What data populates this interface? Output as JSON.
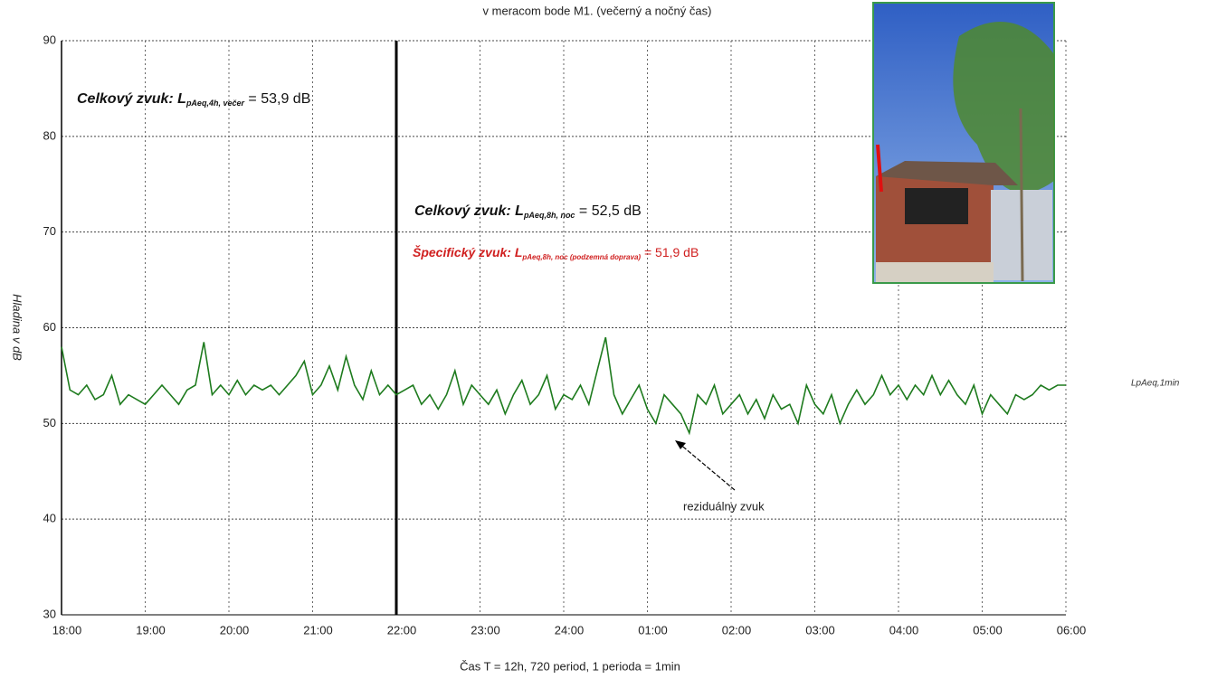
{
  "chart_data": {
    "type": "line",
    "title": "v meracom bode  M1.  (večerný a nočný čas)",
    "ylabel": "Hladina v dB",
    "xlabel": "Čas T = 12h, 720 period, 1 perioda = 1min",
    "xlim": [
      0,
      720
    ],
    "ylim": [
      30,
      90
    ],
    "yticks": [
      30,
      40,
      50,
      60,
      70,
      80,
      90
    ],
    "xticks": [
      {
        "value": 0,
        "label": "18:00"
      },
      {
        "value": 60,
        "label": "19:00"
      },
      {
        "value": 120,
        "label": "20:00"
      },
      {
        "value": 180,
        "label": "21:00"
      },
      {
        "value": 240,
        "label": "22:00"
      },
      {
        "value": 300,
        "label": "23:00"
      },
      {
        "value": 360,
        "label": "24:00"
      },
      {
        "value": 420,
        "label": "01:00"
      },
      {
        "value": 480,
        "label": "02:00"
      },
      {
        "value": 540,
        "label": "03:00"
      },
      {
        "value": 600,
        "label": "04:00"
      },
      {
        "value": 660,
        "label": "05:00"
      },
      {
        "value": 720,
        "label": "06:00"
      }
    ],
    "grid": true,
    "x": [
      0,
      6,
      12,
      18,
      24,
      30,
      36,
      42,
      48,
      54,
      60,
      66,
      72,
      78,
      84,
      90,
      96,
      102,
      108,
      114,
      120,
      126,
      132,
      138,
      144,
      150,
      156,
      162,
      168,
      174,
      180,
      186,
      192,
      198,
      204,
      210,
      216,
      222,
      228,
      234,
      240,
      246,
      252,
      258,
      264,
      270,
      276,
      282,
      288,
      294,
      300,
      306,
      312,
      318,
      324,
      330,
      336,
      342,
      348,
      354,
      360,
      366,
      372,
      378,
      384,
      390,
      396,
      402,
      408,
      414,
      420,
      426,
      432,
      438,
      444,
      450,
      456,
      462,
      468,
      474,
      480,
      486,
      492,
      498,
      504,
      510,
      516,
      522,
      528,
      534,
      540,
      546,
      552,
      558,
      564,
      570,
      576,
      582,
      588,
      594,
      600,
      606,
      612,
      618,
      624,
      630,
      636,
      642,
      648,
      654,
      660,
      666,
      672,
      678,
      684,
      690,
      696,
      702,
      708,
      714,
      720
    ],
    "series": [
      {
        "name": "LpAeq,1min",
        "color": "#1e7b1e",
        "values": [
          58,
          53.5,
          53,
          54,
          52.5,
          53,
          55,
          52,
          53,
          52.5,
          52,
          53,
          54,
          53,
          52,
          53.5,
          54,
          58.5,
          53,
          54,
          53,
          54.5,
          53,
          54,
          53.5,
          54,
          53,
          54,
          55,
          56.5,
          53,
          54,
          56,
          53.5,
          57,
          54,
          52.5,
          55.5,
          53,
          54,
          53,
          53.5,
          54,
          52,
          53,
          51.5,
          53,
          55.5,
          52,
          54,
          53,
          52,
          53.5,
          51,
          53,
          54.5,
          52,
          53,
          55,
          51.5,
          53,
          52.5,
          54,
          52,
          55.5,
          59,
          53,
          51,
          52.5,
          54,
          51.5,
          50,
          53,
          52,
          51,
          49,
          53,
          52,
          54,
          51,
          52,
          53,
          51,
          52.5,
          50.5,
          53,
          51.5,
          52,
          50,
          54,
          52,
          51,
          53,
          50,
          52,
          53.5,
          52,
          53,
          55,
          53,
          54,
          52.5,
          54,
          53,
          55,
          53,
          54.5,
          53,
          52,
          54,
          51,
          53,
          52,
          51,
          53,
          52.5,
          53,
          54,
          53.5,
          54,
          54
        ]
      }
    ],
    "annotations": [
      {
        "text": "Celkový zvuk: L",
        "subscript": "pAeq,4h, večer",
        "suffix": " = 53,9 dB"
      },
      {
        "text": "Celkový zvuk: L",
        "subscript": "pAeq,8h, noc",
        "suffix": " = 52,5 dB"
      },
      {
        "text": "Špecifický zvuk: L",
        "subscript": "pAeq,8h, noc (podzemná doprava)",
        "suffix": " = 51,9 dB"
      },
      {
        "text": "reziduálny zvuk"
      }
    ]
  }
}
